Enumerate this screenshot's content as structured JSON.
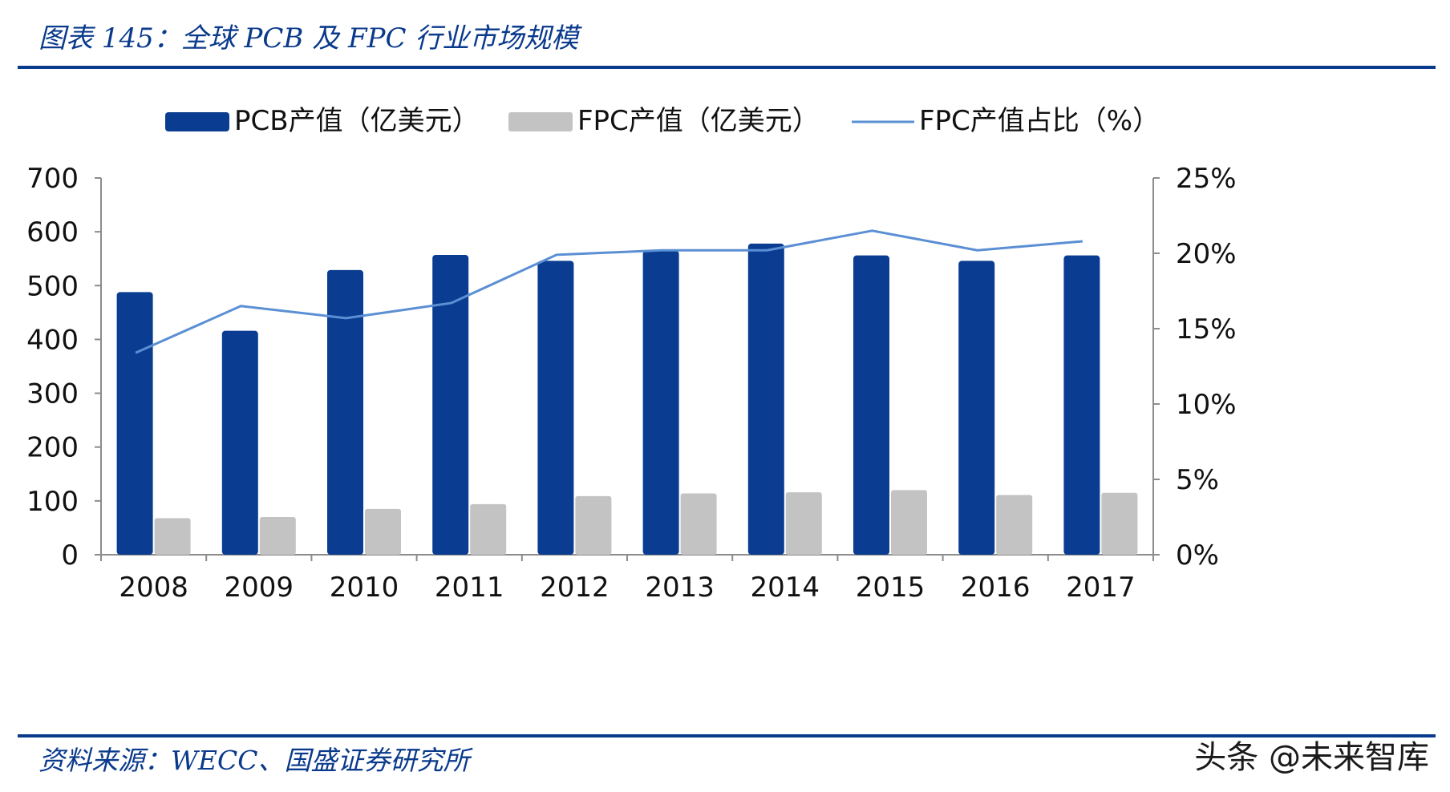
{
  "figure_title": "图表 145：全球 PCB 及 FPC 行业市场规模",
  "source_note": "资料来源：WECC、国盛证券研究所",
  "watermark": "头条 @未来智库",
  "colors": {
    "pcb": "#0a3d91",
    "fpc": "#c3c3c3",
    "share_line": "#5b8fd4",
    "rule": "#0a3a8c",
    "axis": "#8c8c8c"
  },
  "chart_data": {
    "type": "bar",
    "categories": [
      "2008",
      "2009",
      "2010",
      "2011",
      "2012",
      "2013",
      "2014",
      "2015",
      "2016",
      "2017"
    ],
    "series": [
      {
        "name": "PCB产值（亿美元）",
        "type": "bar",
        "axis": "left",
        "values": [
          488,
          416,
          529,
          557,
          546,
          565,
          578,
          556,
          546,
          556
        ]
      },
      {
        "name": "FPC产值（亿美元）",
        "type": "bar",
        "axis": "left",
        "values": [
          68,
          70,
          85,
          94,
          109,
          114,
          116,
          120,
          111,
          115
        ]
      },
      {
        "name": "FPC产值占比（%）",
        "type": "line",
        "axis": "right",
        "values": [
          13.4,
          16.5,
          15.7,
          16.7,
          19.9,
          20.2,
          20.2,
          21.5,
          20.2,
          20.8
        ]
      }
    ],
    "left_axis": {
      "ylim": [
        0,
        700
      ],
      "ticks": [
        "0",
        "100",
        "200",
        "300",
        "400",
        "500",
        "600",
        "700"
      ]
    },
    "right_axis": {
      "ylim": [
        0,
        25
      ],
      "ticks": [
        "0%",
        "5%",
        "10%",
        "15%",
        "20%",
        "25%"
      ]
    },
    "legend_placement": "top"
  }
}
